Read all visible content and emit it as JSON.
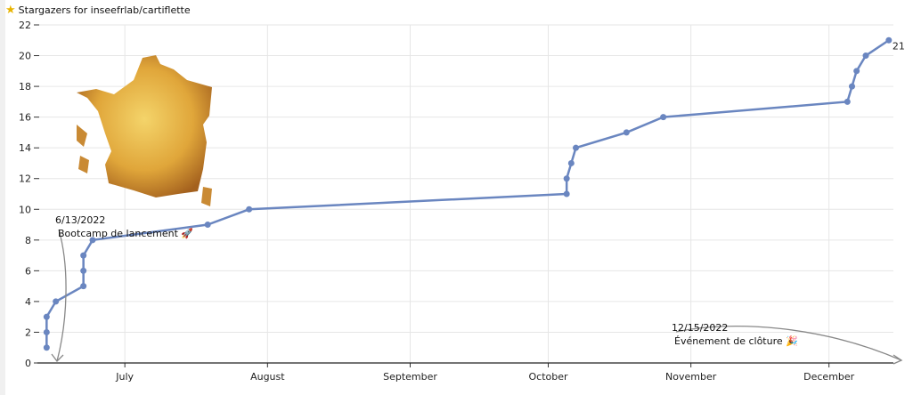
{
  "title": "Stargazers for inseefrlab/cartiflette",
  "title_icon": "star-icon",
  "chart_data": {
    "type": "line",
    "title": "Stargazers for inseefrlab/cartiflette",
    "xlabel": "",
    "ylabel": "",
    "xlim": [
      "2022-06-12",
      "2022-12-15"
    ],
    "ylim": [
      0,
      22
    ],
    "grid": true,
    "line_color": "#6a86c0",
    "y_ticks": [
      0,
      2,
      4,
      6,
      8,
      10,
      12,
      14,
      16,
      18,
      20,
      22
    ],
    "x_ticks": [
      {
        "date": "2022-07-01",
        "label": "July"
      },
      {
        "date": "2022-08-01",
        "label": "August"
      },
      {
        "date": "2022-09-01",
        "label": "September"
      },
      {
        "date": "2022-10-01",
        "label": "October"
      },
      {
        "date": "2022-11-01",
        "label": "November"
      },
      {
        "date": "2022-12-01",
        "label": "December"
      }
    ],
    "points": [
      {
        "x": "2022-06-14",
        "y": 1
      },
      {
        "x": "2022-06-14",
        "y": 2
      },
      {
        "x": "2022-06-14",
        "y": 3
      },
      {
        "x": "2022-06-16",
        "y": 4
      },
      {
        "x": "2022-06-22",
        "y": 5
      },
      {
        "x": "2022-06-22",
        "y": 6
      },
      {
        "x": "2022-06-22",
        "y": 7
      },
      {
        "x": "2022-06-24",
        "y": 8
      },
      {
        "x": "2022-07-19",
        "y": 9
      },
      {
        "x": "2022-07-28",
        "y": 10
      },
      {
        "x": "2022-10-05",
        "y": 11
      },
      {
        "x": "2022-10-05",
        "y": 12
      },
      {
        "x": "2022-10-06",
        "y": 13
      },
      {
        "x": "2022-10-07",
        "y": 14
      },
      {
        "x": "2022-10-18",
        "y": 15
      },
      {
        "x": "2022-10-26",
        "y": 16
      },
      {
        "x": "2022-12-05",
        "y": 17
      },
      {
        "x": "2022-12-06",
        "y": 18
      },
      {
        "x": "2022-12-07",
        "y": 19
      },
      {
        "x": "2022-12-09",
        "y": 20
      },
      {
        "x": "2022-12-14",
        "y": 21
      }
    ],
    "end_label": "21",
    "annotations": [
      {
        "date_label": "6/13/2022",
        "text": "Bootcamp de lancement 🚀"
      },
      {
        "date_label": "12/15/2022",
        "text": "Événement de clôture 🎉"
      }
    ]
  }
}
